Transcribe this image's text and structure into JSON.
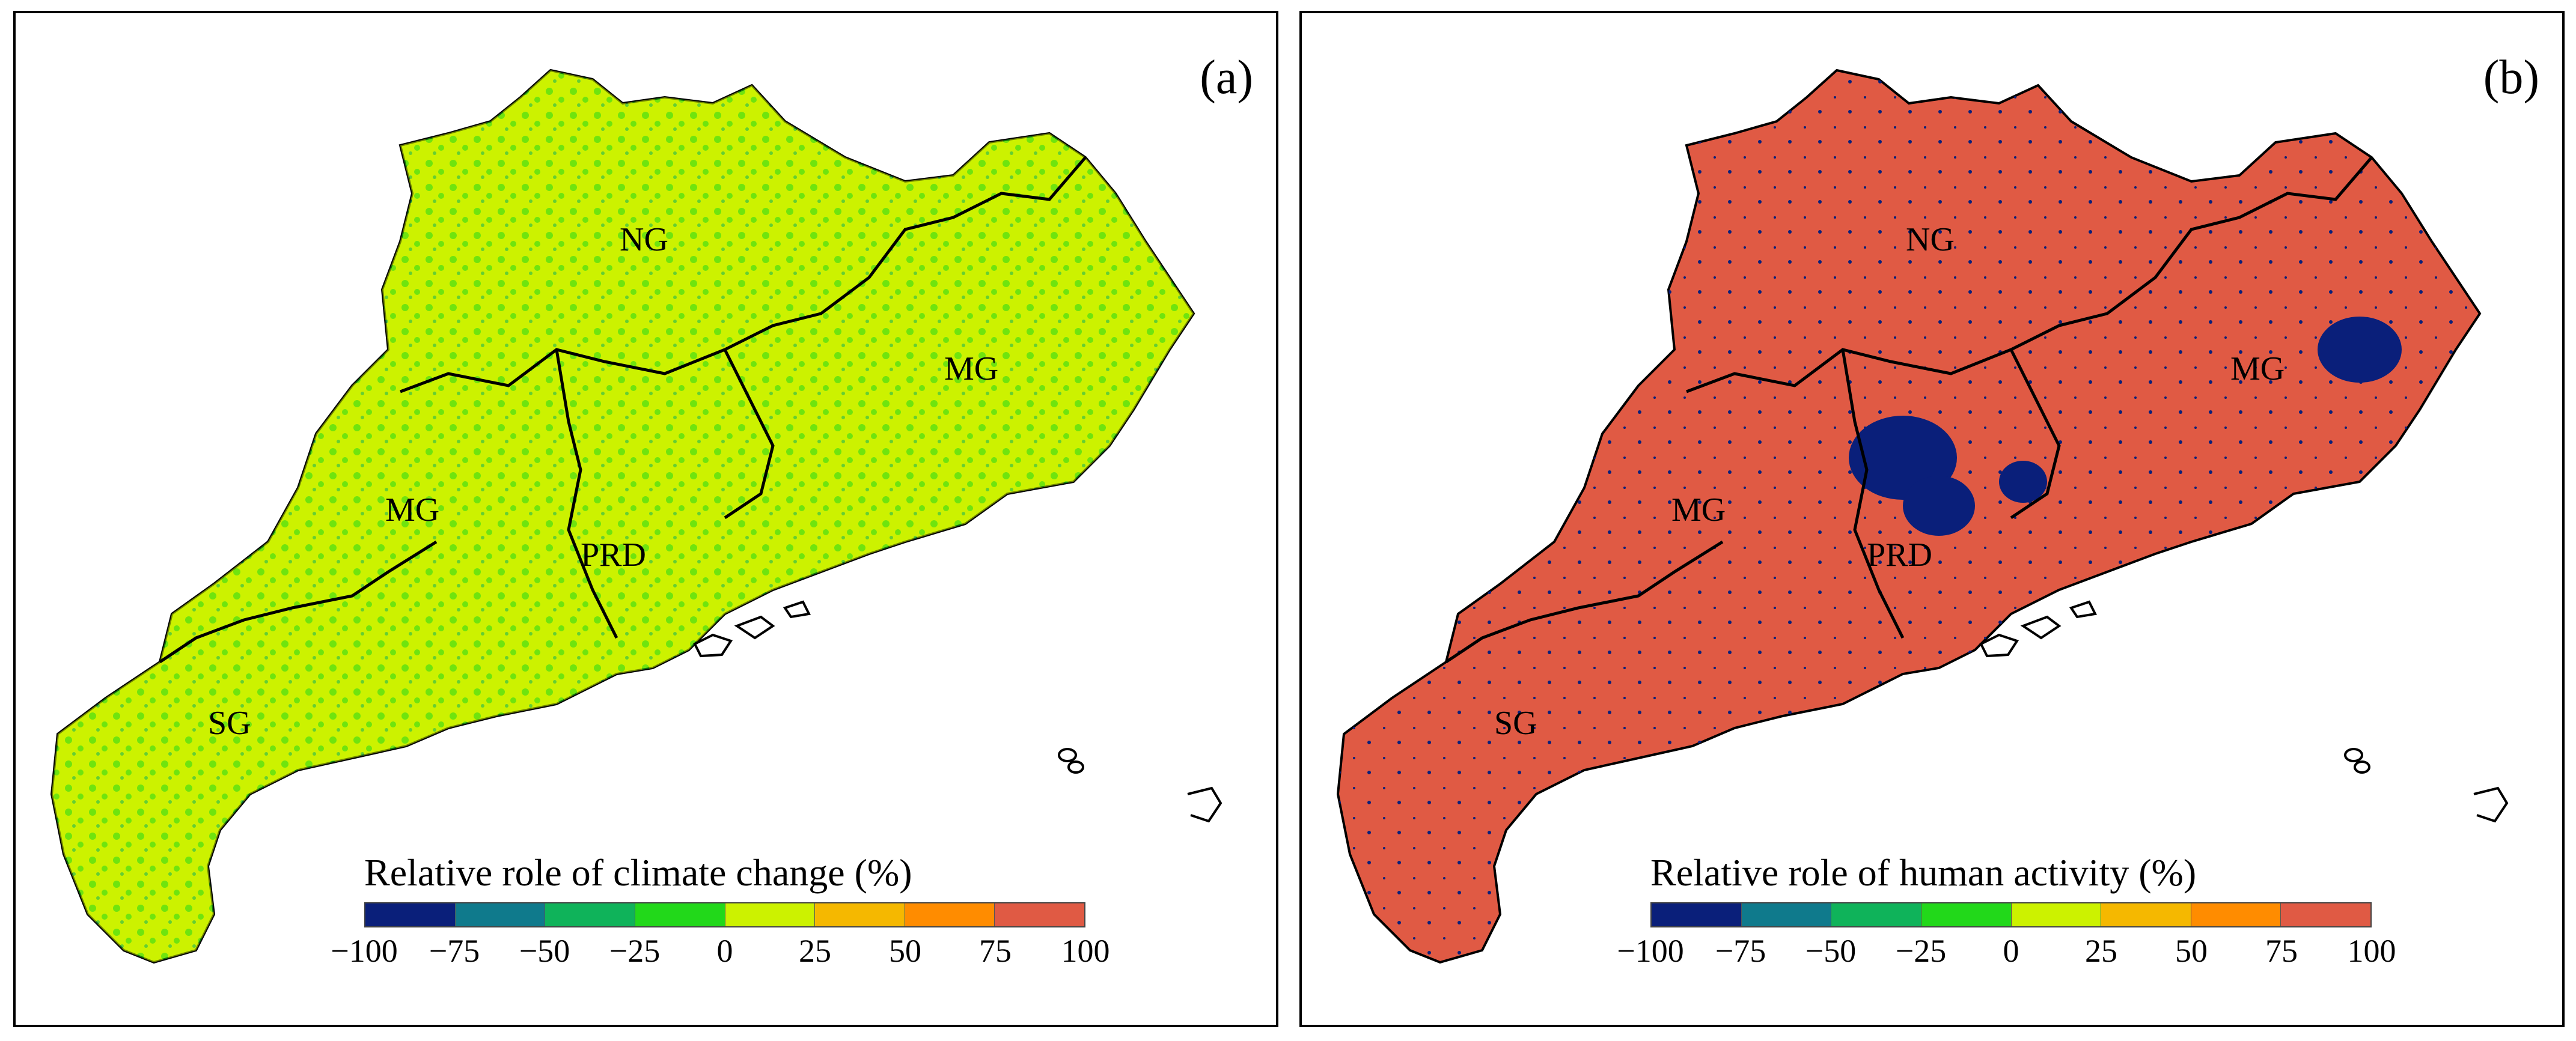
{
  "panels": [
    {
      "id": "a",
      "label": "(a)",
      "colorbar_title": "Relative role of climate change (%)",
      "dominant_color": "#ccf200",
      "secondary_colors": [
        "#22d81a",
        "#0fb35a",
        "#ff8c00",
        "#e5533c",
        "#f5b800"
      ],
      "region_labels": [
        "NG",
        "MG",
        "MG",
        "PRD",
        "SG"
      ]
    },
    {
      "id": "b",
      "label": "(b)",
      "colorbar_title": "Relative role of human activity (%)",
      "dominant_color": "#e05a44",
      "secondary_colors": [
        "#0a1f7a",
        "#ccf200",
        "#22d81a",
        "#f5b800"
      ],
      "region_labels": [
        "NG",
        "MG",
        "MG",
        "PRD",
        "SG"
      ]
    }
  ],
  "colorbar": {
    "ticks": [
      "−100",
      "−75",
      "−50",
      "−25",
      "0",
      "25",
      "50",
      "75",
      "100"
    ],
    "colors": [
      "#0a1f7a",
      "#0f7a8c",
      "#0fb35a",
      "#22d81a",
      "#ccf200",
      "#f5b800",
      "#ff8c00",
      "#e05a44"
    ]
  }
}
